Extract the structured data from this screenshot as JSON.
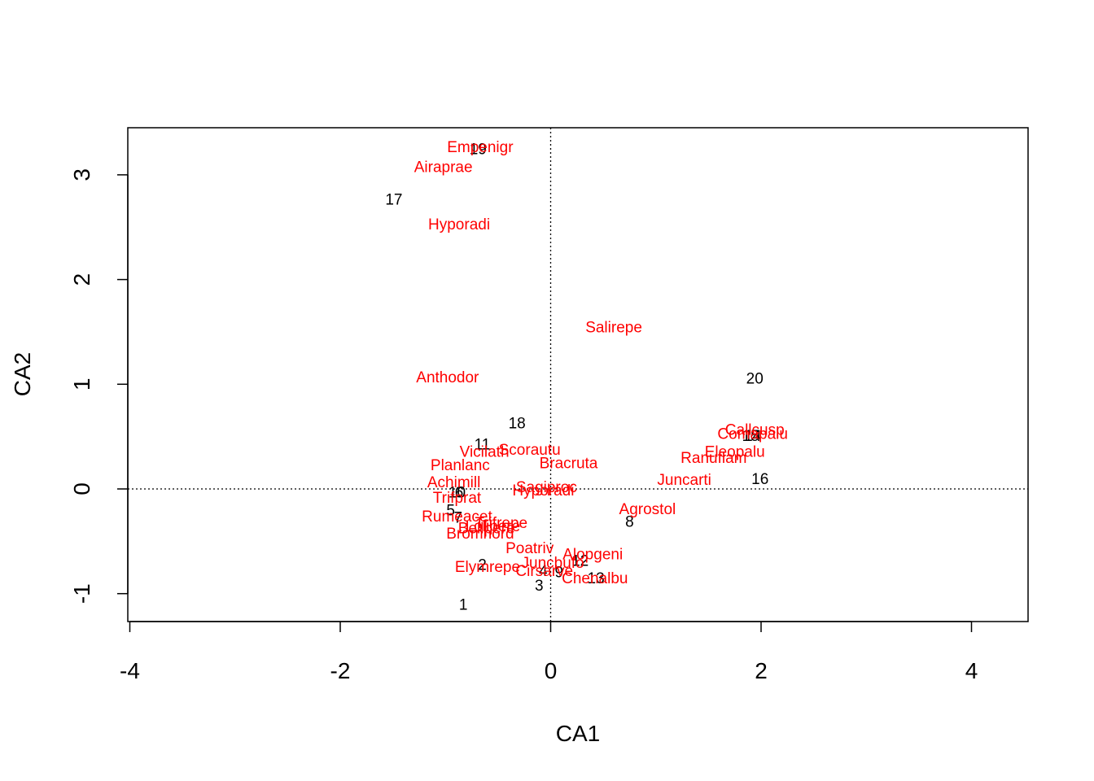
{
  "chart_data": {
    "type": "scatter",
    "title": "",
    "xlabel": "CA1",
    "ylabel": "CA2",
    "xlim": [
      -4.0,
      4.5
    ],
    "ylim": [
      -1.25,
      3.45
    ],
    "x_ticks": [
      -4,
      -2,
      0,
      2,
      4
    ],
    "y_ticks": [
      -1,
      0,
      1,
      2,
      3
    ],
    "x_tick_labels": [
      "-4",
      "-2",
      "0",
      "2",
      "4"
    ],
    "y_tick_labels": [
      "-1",
      "0",
      "1",
      "2",
      "3"
    ],
    "reference_lines": {
      "x": 0,
      "y": 0,
      "style": "dotted"
    },
    "grid": false,
    "colors": {
      "sites": "#000000",
      "species": "#ff0000"
    },
    "series": [
      {
        "name": "",
        "points": [
          {
            "label": "1",
            "x": -0.83,
            "y": -1.11
          },
          {
            "label": "2",
            "x": -0.65,
            "y": -0.73
          },
          {
            "label": "3",
            "x": -0.11,
            "y": -0.93
          },
          {
            "label": "4",
            "x": -0.07,
            "y": -0.79
          },
          {
            "label": "5",
            "x": -0.95,
            "y": -0.21
          },
          {
            "label": "6",
            "x": -0.87,
            "y": -0.04
          },
          {
            "label": "7",
            "x": -0.88,
            "y": -0.28
          },
          {
            "label": "8",
            "x": 0.75,
            "y": -0.32
          },
          {
            "label": "9",
            "x": 0.08,
            "y": -0.8
          },
          {
            "label": "10",
            "x": -0.89,
            "y": -0.04
          },
          {
            "label": "11",
            "x": -0.65,
            "y": 0.42
          },
          {
            "label": "12",
            "x": 0.28,
            "y": -0.69
          },
          {
            "label": "13",
            "x": 0.43,
            "y": -0.86
          },
          {
            "label": "14",
            "x": 1.92,
            "y": 0.5
          },
          {
            "label": "15",
            "x": 1.9,
            "y": 0.5
          },
          {
            "label": "16",
            "x": 1.99,
            "y": 0.09
          },
          {
            "label": "17",
            "x": -1.49,
            "y": 2.76
          },
          {
            "label": "18",
            "x": -0.32,
            "y": 0.62
          },
          {
            "label": "19",
            "x": -0.69,
            "y": 3.24
          },
          {
            "label": "20",
            "x": 1.94,
            "y": 1.05
          }
        ]
      },
      {
        "name": "",
        "points": [
          {
            "label": "Empenigr",
            "x": -0.67,
            "y": 3.26
          },
          {
            "label": "Airaprae",
            "x": -1.02,
            "y": 3.07
          },
          {
            "label": "Hyporadi",
            "x": -0.87,
            "y": 2.52
          },
          {
            "label": "Salirepe",
            "x": 0.6,
            "y": 1.54
          },
          {
            "label": "Anthodor",
            "x": -0.98,
            "y": 1.06
          },
          {
            "label": "Callcusp",
            "x": 1.94,
            "y": 0.56
          },
          {
            "label": "Comapalu",
            "x": 1.92,
            "y": 0.52
          },
          {
            "label": "Eleopalu",
            "x": 1.75,
            "y": 0.35
          },
          {
            "label": "Ranuflam",
            "x": 1.55,
            "y": 0.29
          },
          {
            "label": "Juncarti",
            "x": 1.27,
            "y": 0.08
          },
          {
            "label": "Scorautu",
            "x": -0.2,
            "y": 0.37
          },
          {
            "label": "Vicilath",
            "x": -0.63,
            "y": 0.35
          },
          {
            "label": "Bracruta",
            "x": 0.17,
            "y": 0.24
          },
          {
            "label": "Planlanc",
            "x": -0.86,
            "y": 0.22
          },
          {
            "label": "Achimill",
            "x": -0.92,
            "y": 0.06
          },
          {
            "label": "Sagiproc",
            "x": -0.04,
            "y": 0.01
          },
          {
            "label": "Hyporadi",
            "x": -0.07,
            "y": -0.02
          },
          {
            "label": "Trifprat",
            "x": -0.89,
            "y": -0.09
          },
          {
            "label": "Rumeacet",
            "x": -0.89,
            "y": -0.27
          },
          {
            "label": "Lolipere",
            "x": -0.55,
            "y": -0.36
          },
          {
            "label": "Bellpere",
            "x": -0.61,
            "y": -0.38
          },
          {
            "label": "Trifrepe",
            "x": -0.47,
            "y": -0.33
          },
          {
            "label": "Bromhord",
            "x": -0.67,
            "y": -0.43
          },
          {
            "label": "Agrostol",
            "x": 0.92,
            "y": -0.2
          },
          {
            "label": "Poatriv",
            "x": -0.2,
            "y": -0.57
          },
          {
            "label": "Alopgeni",
            "x": 0.4,
            "y": -0.63
          },
          {
            "label": "Juncbufo",
            "x": 0.02,
            "y": -0.71
          },
          {
            "label": "Elymrepe",
            "x": -0.6,
            "y": -0.75
          },
          {
            "label": "Cirsarve",
            "x": -0.06,
            "y": -0.79
          },
          {
            "label": "Chenalbu",
            "x": 0.42,
            "y": -0.86
          }
        ]
      }
    ]
  }
}
